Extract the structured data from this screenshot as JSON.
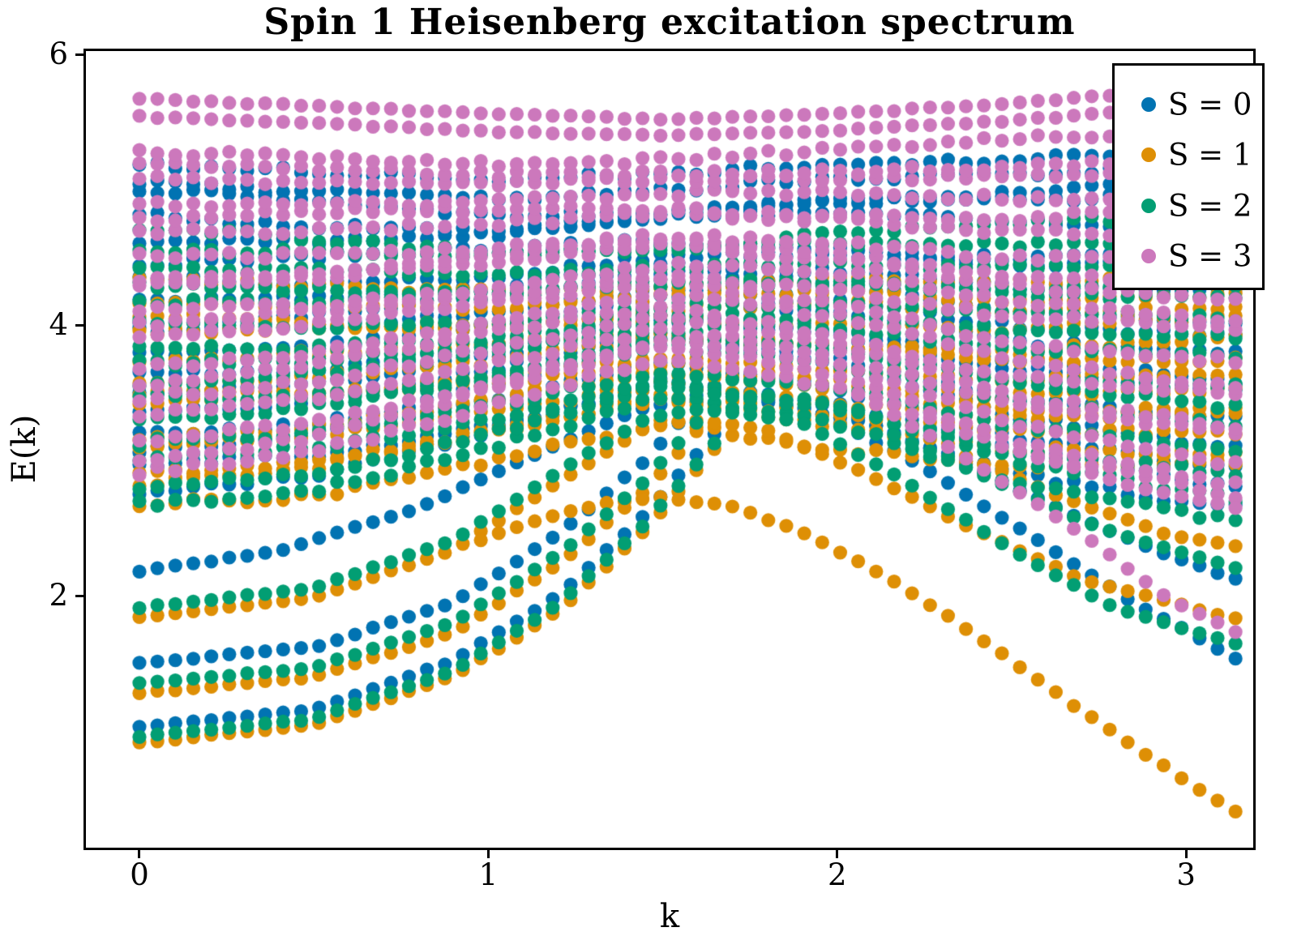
{
  "chart_data": {
    "type": "scatter",
    "title": "Spin 1 Heisenberg excitation spectrum",
    "xlabel": "k",
    "ylabel": "E(k)",
    "x_ticks": [
      0,
      1,
      2,
      3
    ],
    "y_ticks": [
      2,
      4,
      6
    ],
    "xlim": [
      -0.1533,
      3.1924
    ],
    "ylim": [
      0.138,
      6.024
    ],
    "grid": false,
    "legend_position": "upper right",
    "k_count": 62,
    "k_max": 3.14159265,
    "marker_radius_px": 8.6,
    "seed": 42,
    "draw_order": [
      0,
      1,
      2,
      3
    ],
    "series": [
      {
        "spin": 0,
        "label": "S = 0",
        "color": "#0173b2"
      },
      {
        "spin": 1,
        "label": "S = 1",
        "color": "#de8f05"
      },
      {
        "spin": 2,
        "label": "S = 2",
        "color": "#029e73"
      },
      {
        "spin": 3,
        "label": "S = 3",
        "color": "#cc78bc"
      }
    ],
    "branches": [
      {
        "spin": 0,
        "name": "low-pair-upper",
        "points": [
          [
            0,
            1.03
          ],
          [
            0.5,
            1.16
          ],
          [
            0.9,
            1.52
          ],
          [
            1.2,
            2.0
          ],
          [
            1.45,
            2.6
          ],
          [
            1.65,
            3.2
          ]
        ]
      },
      {
        "spin": 0,
        "name": "second-branch",
        "points": [
          [
            0,
            1.5
          ],
          [
            0.5,
            1.62
          ],
          [
            0.9,
            1.95
          ],
          [
            1.2,
            2.45
          ],
          [
            1.45,
            3.0
          ],
          [
            1.62,
            3.5
          ]
        ]
      },
      {
        "spin": 0,
        "name": "arc-branch",
        "points": [
          [
            0,
            2.18
          ],
          [
            0.4,
            2.33
          ],
          [
            0.8,
            2.65
          ],
          [
            1.1,
            3.0
          ],
          [
            1.4,
            3.35
          ],
          [
            1.65,
            3.52
          ],
          [
            1.95,
            3.35
          ],
          [
            2.25,
            2.95
          ],
          [
            2.55,
            2.45
          ],
          [
            2.85,
            1.95
          ],
          [
            3.1416,
            1.54
          ]
        ]
      },
      {
        "spin": 0,
        "name": "right-descending",
        "points": [
          [
            2.05,
            3.32
          ],
          [
            2.35,
            3.0
          ],
          [
            2.65,
            2.62
          ],
          [
            2.95,
            2.3
          ],
          [
            3.1416,
            2.12
          ]
        ]
      },
      {
        "spin": 1,
        "name": "lowest-shadow",
        "points": [
          [
            0,
            0.915
          ],
          [
            0.5,
            1.045
          ],
          [
            0.9,
            1.405
          ],
          [
            1.2,
            1.885
          ],
          [
            1.45,
            2.485
          ],
          [
            1.65,
            3.085
          ]
        ]
      },
      {
        "spin": 1,
        "name": "second-branch",
        "points": [
          [
            0,
            1.28
          ],
          [
            0.5,
            1.4
          ],
          [
            0.9,
            1.73
          ],
          [
            1.2,
            2.23
          ],
          [
            1.45,
            2.78
          ],
          [
            1.62,
            3.28
          ]
        ]
      },
      {
        "spin": 1,
        "name": "arc-branch",
        "points": [
          [
            0,
            1.84
          ],
          [
            0.5,
            1.99
          ],
          [
            0.9,
            2.34
          ],
          [
            1.2,
            2.84
          ],
          [
            1.45,
            3.24
          ],
          [
            1.6,
            3.3
          ],
          [
            1.8,
            3.22
          ],
          [
            2.1,
            2.88
          ],
          [
            2.4,
            2.48
          ],
          [
            2.7,
            2.12
          ],
          [
            3.1416,
            1.83
          ]
        ]
      },
      {
        "spin": 1,
        "name": "single-magnon",
        "points": [
          [
            0.95,
            2.38
          ],
          [
            1.15,
            2.57
          ],
          [
            1.35,
            2.69
          ],
          [
            1.5,
            2.73
          ],
          [
            1.7,
            2.66
          ],
          [
            1.9,
            2.47
          ],
          [
            2.1,
            2.2
          ],
          [
            2.3,
            1.88
          ],
          [
            2.5,
            1.52
          ],
          [
            2.7,
            1.15
          ],
          [
            2.9,
            0.8
          ],
          [
            3.05,
            0.55
          ],
          [
            3.1416,
            0.41
          ]
        ]
      },
      {
        "spin": 1,
        "name": "right-descending",
        "points": [
          [
            2.35,
            3.05
          ],
          [
            2.65,
            2.72
          ],
          [
            2.95,
            2.45
          ],
          [
            3.1416,
            2.37
          ]
        ]
      },
      {
        "spin": 2,
        "name": "low-pair-lower",
        "points": [
          [
            0,
            0.96
          ],
          [
            0.5,
            1.09
          ],
          [
            0.9,
            1.45
          ],
          [
            1.2,
            1.93
          ],
          [
            1.45,
            2.53
          ],
          [
            1.65,
            3.13
          ]
        ]
      },
      {
        "spin": 2,
        "name": "second-branch",
        "points": [
          [
            0,
            1.35
          ],
          [
            0.5,
            1.47
          ],
          [
            0.9,
            1.8
          ],
          [
            1.2,
            2.3
          ],
          [
            1.45,
            2.85
          ],
          [
            1.62,
            3.35
          ]
        ]
      },
      {
        "spin": 2,
        "name": "arc-branch",
        "points": [
          [
            0,
            1.91
          ],
          [
            0.5,
            2.06
          ],
          [
            0.9,
            2.41
          ],
          [
            1.2,
            2.91
          ],
          [
            1.45,
            3.31
          ],
          [
            1.62,
            3.38
          ],
          [
            1.9,
            3.28
          ],
          [
            2.2,
            2.84
          ],
          [
            2.5,
            2.34
          ],
          [
            2.8,
            1.9
          ],
          [
            3.1416,
            1.65
          ]
        ]
      },
      {
        "spin": 2,
        "name": "right-descending",
        "points": [
          [
            2.15,
            3.2
          ],
          [
            2.45,
            2.85
          ],
          [
            2.75,
            2.5
          ],
          [
            3.05,
            2.27
          ],
          [
            3.1416,
            2.2
          ]
        ]
      },
      {
        "spin": 3,
        "name": "right-descending-1",
        "points": [
          [
            2.05,
            3.5
          ],
          [
            2.35,
            3.05
          ],
          [
            2.65,
            2.55
          ],
          [
            2.95,
            1.98
          ],
          [
            3.1416,
            1.73
          ]
        ]
      },
      {
        "spin": 3,
        "name": "right-descending-2",
        "points": [
          [
            2.55,
            3.05
          ],
          [
            2.85,
            2.8
          ],
          [
            3.1416,
            2.65
          ]
        ]
      },
      {
        "spin": 3,
        "name": "top-cap-1",
        "points": [
          [
            0,
            5.67
          ],
          [
            0.5,
            5.62
          ],
          [
            1.0,
            5.56
          ],
          [
            1.5,
            5.52
          ],
          [
            2.0,
            5.56
          ],
          [
            2.5,
            5.64
          ],
          [
            3.1416,
            5.77
          ]
        ]
      },
      {
        "spin": 3,
        "name": "top-cap-2",
        "points": [
          [
            0,
            5.54
          ],
          [
            0.5,
            5.49
          ],
          [
            1.0,
            5.43
          ],
          [
            1.5,
            5.4
          ],
          [
            2.0,
            5.44
          ],
          [
            2.5,
            5.51
          ],
          [
            3.1416,
            5.64
          ]
        ]
      }
    ],
    "continuum": [
      {
        "spin": 0,
        "rows": 18,
        "k": [
          0,
          0.5,
          1.0,
          1.5,
          2.0,
          2.5,
          3.1416
        ],
        "lower": [
          2.72,
          2.85,
          3.15,
          3.5,
          3.25,
          2.85,
          2.6
        ],
        "upper": [
          5.3,
          5.22,
          5.12,
          5.15,
          5.25,
          5.32,
          5.42
        ]
      },
      {
        "spin": 1,
        "rows": 13,
        "k": [
          0,
          0.5,
          1.0,
          1.5,
          2.0,
          2.5,
          3.1416
        ],
        "lower": [
          2.58,
          2.7,
          3.0,
          3.32,
          3.1,
          2.95,
          2.9
        ],
        "upper": [
          4.4,
          4.35,
          4.28,
          4.3,
          4.36,
          4.32,
          4.42
        ]
      },
      {
        "spin": 2,
        "rows": 15,
        "k": [
          0,
          0.5,
          1.0,
          1.5,
          2.0,
          2.5,
          3.1416
        ],
        "lower": [
          2.65,
          2.78,
          3.08,
          3.42,
          3.2,
          2.8,
          2.55
        ],
        "upper": [
          4.78,
          4.7,
          4.6,
          4.62,
          4.72,
          4.8,
          4.9
        ]
      },
      {
        "spin": 3,
        "rows": 19,
        "k": [
          0,
          0.5,
          1.0,
          1.5,
          2.0,
          2.5,
          3.1416
        ],
        "lower": [
          2.82,
          3.0,
          3.35,
          3.7,
          3.45,
          2.95,
          2.62
        ],
        "upper": [
          5.39,
          5.33,
          5.26,
          5.24,
          5.29,
          5.37,
          5.49
        ]
      }
    ]
  }
}
